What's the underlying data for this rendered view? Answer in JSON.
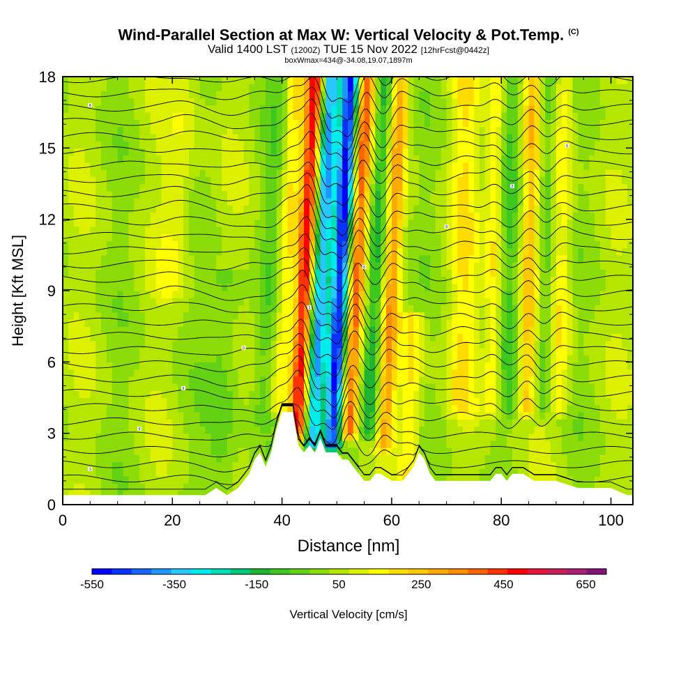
{
  "header": {
    "title": "Wind-Parallel Section at Max W: Vertical Velocity & Pot.Temp.",
    "copyright": "(C)",
    "valid_prefix": "Valid 1400 LST",
    "valid_utc": "(1200Z)",
    "valid_date": "TUE 15 Nov 2022",
    "forecast": "[12hrFcst@0442z]",
    "box_info": "boxWmax=434@-34.08,19.07,1897m"
  },
  "chart_data": {
    "type": "heatmap",
    "title": "Wind-Parallel Section at Max W: Vertical Velocity & Pot.Temp.",
    "xlabel": "Distance [nm]",
    "ylabel": "Height [Kft MSL]",
    "xlim": [
      0,
      104
    ],
    "ylim": [
      0,
      18
    ],
    "x_ticks": [
      0,
      20,
      40,
      60,
      80,
      100
    ],
    "y_ticks": [
      0,
      3,
      6,
      9,
      12,
      15,
      18
    ],
    "colorbar": {
      "label": "Vertical Velocity [cm/s]",
      "tick_labels": [
        "-550",
        "-350",
        "-150",
        "50",
        "250",
        "450",
        "650"
      ],
      "tick_values": [
        -550,
        -350,
        -150,
        50,
        250,
        450,
        650
      ],
      "levels": [
        -550,
        -500,
        -450,
        -400,
        -350,
        -300,
        -250,
        -200,
        -150,
        -100,
        -50,
        0,
        50,
        100,
        150,
        200,
        250,
        300,
        350,
        400,
        450,
        500,
        550,
        600,
        650,
        700
      ],
      "colors": [
        "#0000ff",
        "#0a32ff",
        "#1464ff",
        "#1e96ff",
        "#28c8ff",
        "#00ebeb",
        "#00dcb4",
        "#00c878",
        "#1eb432",
        "#3cc81e",
        "#64d214",
        "#8cdc0a",
        "#b4e600",
        "#dcf000",
        "#ffff00",
        "#ffdc00",
        "#ffc800",
        "#ffaa00",
        "#ff8c00",
        "#ff6400",
        "#ff3200",
        "#ff0000",
        "#e6143c",
        "#c81e5a",
        "#aa1e78",
        "#821478"
      ]
    },
    "waves": [
      {
        "x": 37.5,
        "amp": -60,
        "width": 2.0,
        "tilt": 0.2,
        "zbot": 3.5,
        "ztop": 18
      },
      {
        "x": 40.5,
        "amp": 150,
        "width": 1.6,
        "tilt": 0.22,
        "zbot": 4.0,
        "ztop": 18
      },
      {
        "x": 44.0,
        "amp": 434,
        "width": 1.5,
        "tilt": 0.22,
        "zbot": 3.0,
        "ztop": 18
      },
      {
        "x": 47.0,
        "amp": -450,
        "width": 1.5,
        "tilt": 0.22,
        "zbot": 2.5,
        "ztop": 18
      },
      {
        "x": 50.5,
        "amp": -550,
        "width": 1.6,
        "tilt": 0.22,
        "zbot": 2.5,
        "ztop": 18
      },
      {
        "x": 53.5,
        "amp": 400,
        "width": 1.5,
        "tilt": 0.22,
        "zbot": 3.0,
        "ztop": 18
      },
      {
        "x": 57.0,
        "amp": -200,
        "width": 1.5,
        "tilt": 0.2,
        "zbot": 3.0,
        "ztop": 18
      },
      {
        "x": 60.0,
        "amp": 250,
        "width": 1.5,
        "tilt": 0.2,
        "zbot": 2.5,
        "ztop": 18
      },
      {
        "x": 64.0,
        "amp": 150,
        "width": 2.0,
        "tilt": 0.1,
        "zbot": 0.5,
        "ztop": 8
      },
      {
        "x": 73.0,
        "amp": 120,
        "width": 2.5,
        "tilt": 0.05,
        "zbot": 4.0,
        "ztop": 18
      },
      {
        "x": 78.5,
        "amp": 150,
        "width": 1.6,
        "tilt": 0.05,
        "zbot": 4.0,
        "ztop": 18
      },
      {
        "x": 81.5,
        "amp": -100,
        "width": 1.6,
        "tilt": 0.05,
        "zbot": 4.0,
        "ztop": 18
      },
      {
        "x": 85.0,
        "amp": 200,
        "width": 1.5,
        "tilt": 0.08,
        "zbot": 4.0,
        "ztop": 18
      },
      {
        "x": 88.0,
        "amp": -120,
        "width": 1.5,
        "tilt": 0.08,
        "zbot": 4.0,
        "ztop": 18
      },
      {
        "x": 91.0,
        "amp": 130,
        "width": 1.8,
        "tilt": 0.08,
        "zbot": 4.0,
        "ztop": 18
      },
      {
        "x": 20.0,
        "amp": 80,
        "width": 3.0,
        "tilt": 0.3,
        "zbot": 9.0,
        "ztop": 18
      },
      {
        "x": 30.0,
        "amp": -90,
        "width": 3.0,
        "tilt": 0.1,
        "zbot": 0.5,
        "ztop": 10
      }
    ],
    "terrain": {
      "x_nm": [
        0,
        26,
        28,
        30,
        32,
        33,
        34,
        35,
        36,
        37,
        38,
        39,
        40,
        42,
        43,
        44,
        45,
        46,
        47,
        48,
        50,
        51,
        52,
        55,
        56,
        57,
        58,
        60,
        62,
        64,
        65,
        66,
        67,
        68,
        70,
        72,
        74,
        78,
        79,
        80,
        81,
        82,
        84,
        86,
        90,
        94,
        95,
        100,
        103,
        104
      ],
      "height_kft": [
        0.4,
        0.4,
        0.7,
        0.4,
        0.7,
        1.0,
        1.3,
        1.9,
        2.2,
        1.6,
        2.2,
        3.2,
        3.9,
        3.9,
        2.5,
        2.2,
        2.5,
        2.2,
        2.8,
        2.2,
        2.2,
        1.9,
        1.9,
        1.0,
        1.0,
        1.3,
        1.3,
        1.0,
        1.0,
        1.6,
        2.2,
        1.9,
        1.3,
        1.0,
        1.0,
        1.0,
        1.0,
        1.0,
        1.3,
        1.3,
        1.0,
        1.3,
        1.3,
        1.0,
        1.0,
        0.7,
        0.7,
        0.7,
        0.4,
        0.4
      ]
    },
    "isentropes": {
      "count": 30,
      "spacing_kft": 0.6,
      "base_kft": 0.5,
      "label_values": [
        "3",
        "6",
        "9",
        "0",
        "3",
        "6",
        "9",
        "2",
        "5",
        "8"
      ]
    }
  }
}
